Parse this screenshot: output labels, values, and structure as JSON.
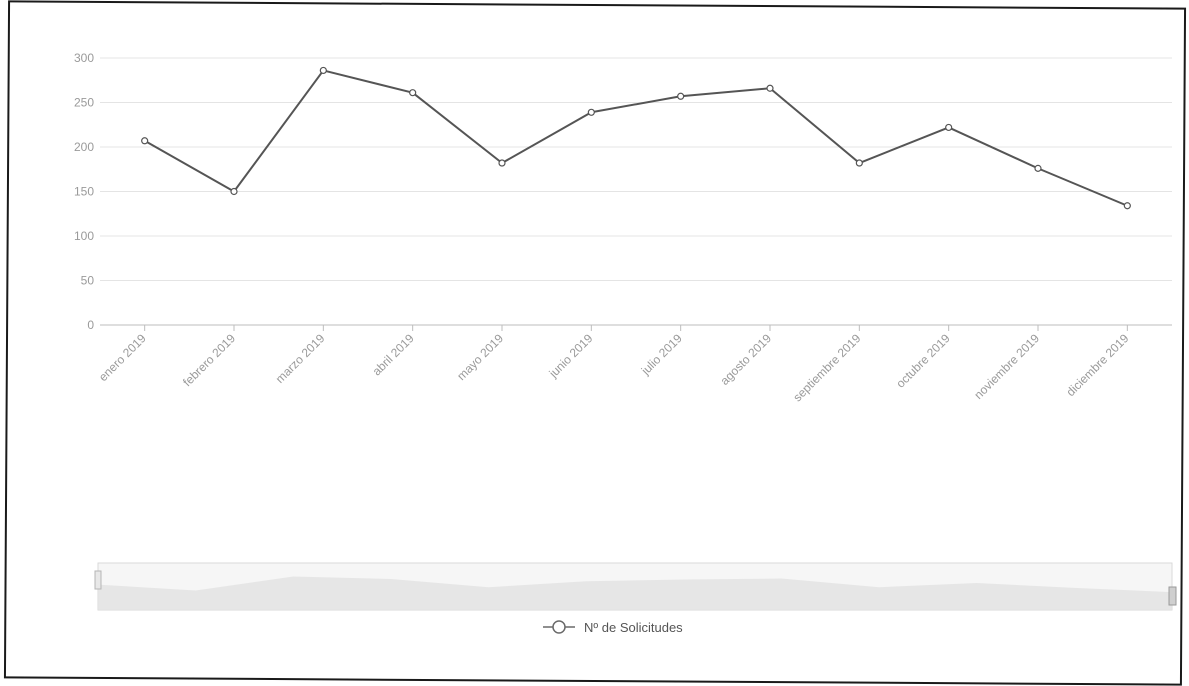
{
  "chart_data": {
    "type": "line",
    "categories": [
      "enero 2019",
      "febrero 2019",
      "marzo 2019",
      "abril 2019",
      "mayo 2019",
      "junio 2019",
      "julio 2019",
      "agosto 2019",
      "septiembre 2019",
      "octubre 2019",
      "noviembre 2019",
      "diciembre 2019"
    ],
    "series": [
      {
        "name": "Nº de Solicitudes",
        "values": [
          207,
          150,
          286,
          261,
          182,
          239,
          257,
          266,
          182,
          222,
          176,
          134
        ]
      }
    ],
    "ylim": [
      0,
      300
    ],
    "yticks": [
      "0",
      "50",
      "100",
      "150",
      "200",
      "250",
      "300"
    ],
    "grid": true,
    "legend_position": "bottom",
    "navigator": true,
    "colors": {
      "line": "#555555",
      "marker_fill": "#ffffff",
      "grid": "#e4e4e4",
      "axis": "#bdbdbd",
      "navigator": "#d9d9d9"
    }
  }
}
